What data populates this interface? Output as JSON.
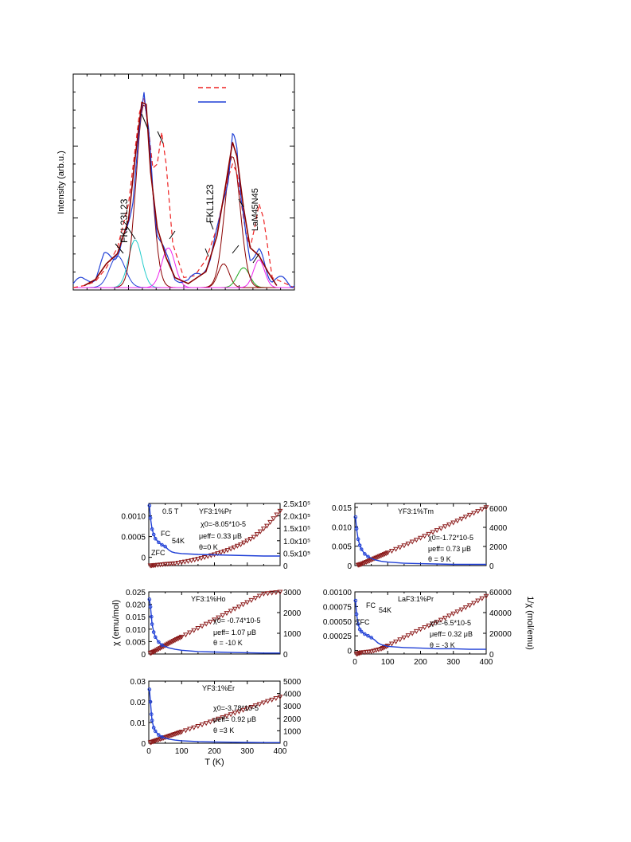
{
  "chart_data": [
    {
      "type": "line",
      "ylabel": "Intensity (arb.u.)",
      "xlabel": "",
      "legend": {
        "placement": "top-right",
        "entries": [
          {
            "style": "dashed",
            "color": "#ee2222"
          },
          {
            "style": "solid",
            "color": "#1f3fd6"
          }
        ]
      },
      "peak_labels": [
        "FKL23L23",
        "FKL1L23",
        "LaM45N45"
      ],
      "series": [
        {
          "style": "dashed",
          "color": "#ee2222",
          "points": [
            [
              0.0,
              0.0
            ],
            [
              0.05,
              0.01
            ],
            [
              0.1,
              0.03
            ],
            [
              0.15,
              0.1
            ],
            [
              0.2,
              0.2
            ],
            [
              0.25,
              0.42
            ],
            [
              0.3,
              0.88
            ],
            [
              0.32,
              0.95
            ],
            [
              0.34,
              0.8
            ],
            [
              0.36,
              0.6
            ],
            [
              0.38,
              0.62
            ],
            [
              0.4,
              0.78
            ],
            [
              0.42,
              0.62
            ],
            [
              0.45,
              0.22
            ],
            [
              0.5,
              0.05
            ],
            [
              0.55,
              0.06
            ],
            [
              0.6,
              0.14
            ],
            [
              0.65,
              0.3
            ],
            [
              0.7,
              0.55
            ],
            [
              0.72,
              0.62
            ],
            [
              0.74,
              0.58
            ],
            [
              0.76,
              0.42
            ],
            [
              0.78,
              0.28
            ],
            [
              0.8,
              0.2
            ],
            [
              0.82,
              0.3
            ],
            [
              0.84,
              0.42
            ],
            [
              0.86,
              0.35
            ],
            [
              0.88,
              0.2
            ],
            [
              0.9,
              0.05
            ],
            [
              1.0,
              0.0
            ]
          ]
        },
        {
          "style": "solid",
          "color": "#1f3fd6",
          "points": [
            [
              0.0,
              0.02
            ],
            [
              0.05,
              0.03
            ],
            [
              0.1,
              0.06
            ],
            [
              0.14,
              0.15
            ],
            [
              0.18,
              0.16
            ],
            [
              0.21,
              0.18
            ],
            [
              0.24,
              0.28
            ],
            [
              0.27,
              0.45
            ],
            [
              0.3,
              0.78
            ],
            [
              0.32,
              1.0
            ],
            [
              0.34,
              0.8
            ],
            [
              0.36,
              0.48
            ],
            [
              0.38,
              0.28
            ],
            [
              0.42,
              0.15
            ],
            [
              0.46,
              0.06
            ],
            [
              0.52,
              0.03
            ],
            [
              0.58,
              0.06
            ],
            [
              0.62,
              0.16
            ],
            [
              0.66,
              0.32
            ],
            [
              0.7,
              0.55
            ],
            [
              0.72,
              0.76
            ],
            [
              0.74,
              0.7
            ],
            [
              0.76,
              0.45
            ],
            [
              0.78,
              0.25
            ],
            [
              0.8,
              0.16
            ],
            [
              0.84,
              0.18
            ],
            [
              0.87,
              0.1
            ],
            [
              0.9,
              0.04
            ],
            [
              0.95,
              0.03
            ],
            [
              1.0,
              0.01
            ]
          ]
        },
        {
          "style": "solid",
          "color": "#8b0000",
          "points": [
            [
              0.05,
              0.01
            ],
            [
              0.1,
              0.04
            ],
            [
              0.15,
              0.12
            ],
            [
              0.2,
              0.17
            ],
            [
              0.25,
              0.34
            ],
            [
              0.28,
              0.65
            ],
            [
              0.31,
              0.93
            ],
            [
              0.33,
              0.92
            ],
            [
              0.35,
              0.58
            ],
            [
              0.38,
              0.3
            ],
            [
              0.42,
              0.15
            ],
            [
              0.46,
              0.05
            ],
            [
              0.52,
              0.02
            ],
            [
              0.6,
              0.08
            ],
            [
              0.65,
              0.26
            ],
            [
              0.69,
              0.52
            ],
            [
              0.72,
              0.73
            ],
            [
              0.74,
              0.66
            ],
            [
              0.77,
              0.4
            ],
            [
              0.8,
              0.2
            ],
            [
              0.84,
              0.16
            ],
            [
              0.88,
              0.08
            ],
            [
              0.92,
              0.01
            ]
          ]
        }
      ],
      "components": [
        {
          "color": "#1f3fd6",
          "center": 0.2,
          "height": 0.16,
          "width": 0.035
        },
        {
          "color": "#22cccc",
          "center": 0.28,
          "height": 0.24,
          "width": 0.03
        },
        {
          "color": "#8b0000",
          "center": 0.32,
          "height": 0.92,
          "width": 0.035
        },
        {
          "color": "#ee22ee",
          "center": 0.43,
          "height": 0.2,
          "width": 0.03
        },
        {
          "color": "#8b0000",
          "center": 0.68,
          "height": 0.12,
          "width": 0.025
        },
        {
          "color": "#22aa22",
          "center": 0.77,
          "height": 0.1,
          "width": 0.028
        },
        {
          "color": "#8b0000",
          "center": 0.72,
          "height": 0.66,
          "width": 0.035
        },
        {
          "color": "#ee22ee",
          "center": 0.84,
          "height": 0.14,
          "width": 0.025
        }
      ]
    },
    {
      "type": "scatter",
      "panel": "YF3:1%Pr",
      "annotations": [
        "0.5 T",
        "YF3:1%Pr",
        "χ0=-8.05*10-5",
        "μeff= 0.33 μB",
        "θ=0 K",
        "FC",
        "ZFC",
        "54K"
      ],
      "xlim": [
        0,
        400
      ],
      "x_ticks": [],
      "ylim_left": [
        -0.0002,
        0.0013
      ],
      "y_ticks_left": [
        "0.0010",
        "0.0005",
        "0"
      ],
      "ylim_right": [
        0,
        250000
      ],
      "y_ticks_right": [
        "2.5x10⁵",
        "2.0x10⁵",
        "1.5x10⁵",
        "1.0x10⁵",
        "0.5x10⁵",
        "0"
      ],
      "chi": {
        "color": "#1f3fd6",
        "x": [
          2,
          5,
          10,
          15,
          20,
          30,
          40,
          50,
          60,
          70,
          80,
          100,
          150,
          200,
          250,
          300,
          350,
          400
        ],
        "y": [
          0.00125,
          0.00095,
          0.00068,
          0.00055,
          0.00045,
          0.00036,
          0.0003,
          0.00026,
          0.00018,
          0.00013,
          0.00011,
          9e-05,
          7e-05,
          6e-05,
          5e-05,
          4e-05,
          3e-05,
          3e-05
        ]
      },
      "inv_chi": {
        "color": "#8b1a1a",
        "x": [
          5,
          20,
          50,
          80,
          120,
          160,
          200,
          240,
          280,
          320,
          360,
          400
        ],
        "y": [
          0,
          2000,
          6000,
          9000,
          18000,
          30000,
          45000,
          62000,
          85000,
          115000,
          160000,
          220000
        ]
      }
    },
    {
      "type": "scatter",
      "panel": "YF3:1%Tm",
      "annotations": [
        "YF3:1%Tm",
        "χ0=-1.72*10-5",
        "μeff= 0.73 μB",
        "θ = 9 K"
      ],
      "xlim": [
        0,
        400
      ],
      "x_ticks": [],
      "ylim_left": [
        0,
        0.016
      ],
      "y_ticks_left": [
        "0.015",
        "0.010",
        "0.005",
        "0"
      ],
      "ylim_right": [
        0,
        6500
      ],
      "y_ticks_right": [
        "6000",
        "4000",
        "2000",
        "0"
      ],
      "chi": {
        "color": "#1f3fd6",
        "x": [
          2,
          5,
          10,
          15,
          20,
          30,
          40,
          60,
          80,
          100,
          150,
          200,
          250,
          300,
          350,
          400
        ],
        "y": [
          0.0125,
          0.0095,
          0.0068,
          0.0052,
          0.0042,
          0.003,
          0.0023,
          0.0015,
          0.0011,
          0.0009,
          0.0006,
          0.0005,
          0.0004,
          0.0003,
          0.0003,
          0.0003
        ]
      },
      "inv_chi": {
        "color": "#8b1a1a",
        "x": [
          10,
          20,
          40,
          60,
          80,
          100,
          150,
          200,
          250,
          300,
          350,
          400
        ],
        "y": [
          60,
          170,
          450,
          750,
          1050,
          1350,
          2100,
          2900,
          3700,
          4500,
          5300,
          6100
        ]
      }
    },
    {
      "type": "scatter",
      "panel": "YF3:1%Ho",
      "annotations": [
        "YF3:1%Ho",
        "χ0= -0.74*10-5",
        "μeff= 1.07 μB",
        "θ = -10 K"
      ],
      "xlim": [
        0,
        400
      ],
      "x_ticks": [],
      "ylabel_left": "χ (emu/mol)",
      "ylim_left": [
        0,
        0.025
      ],
      "y_ticks_left": [
        "0.025",
        "0.020",
        "0.015",
        "0.010",
        "0.005",
        "0"
      ],
      "ylim_right": [
        0,
        3000
      ],
      "y_ticks_right": [
        "3000",
        "2000",
        "1000",
        "0"
      ],
      "chi": {
        "color": "#1f3fd6",
        "x": [
          2,
          5,
          8,
          10,
          15,
          20,
          30,
          40,
          60,
          80,
          100,
          150,
          200,
          250,
          300,
          350,
          400
        ],
        "y": [
          0.022,
          0.019,
          0.015,
          0.012,
          0.0088,
          0.0068,
          0.0048,
          0.0036,
          0.0025,
          0.0019,
          0.0015,
          0.001,
          0.0008,
          0.0006,
          0.0005,
          0.0004,
          0.0004
        ]
      },
      "inv_chi": {
        "color": "#8b1a1a",
        "x": [
          5,
          20,
          40,
          60,
          80,
          100,
          150,
          200,
          250,
          300,
          350,
          400
        ],
        "y": [
          40,
          150,
          330,
          500,
          670,
          830,
          1250,
          1660,
          2080,
          2500,
          2910,
          3000
        ]
      }
    },
    {
      "type": "scatter",
      "panel": "LaF3:1%Pr",
      "annotations": [
        "LaF3:1%Pr",
        "χ0=-6.5*10-5",
        "μeff= 0.32 μB",
        "θ = -3 K",
        "FC",
        "ZFC",
        "54K"
      ],
      "xlim": [
        0,
        400
      ],
      "x_ticks": [
        "0",
        "100",
        "200",
        "300",
        "400"
      ],
      "ylabel_right": "1/χ (mol/emu)",
      "ylim_left": [
        -6e-05,
        0.001
      ],
      "y_ticks_left": [
        "0.00100",
        "0.00075",
        "0.00050",
        "0.00025",
        "0"
      ],
      "ylim_right": [
        0,
        60000
      ],
      "y_ticks_right": [
        "60000",
        "40000",
        "20000",
        "0"
      ],
      "chi": {
        "color": "#1f3fd6",
        "x": [
          2,
          5,
          10,
          15,
          20,
          30,
          40,
          50,
          60,
          70,
          80,
          100,
          150,
          200,
          250,
          300,
          350,
          400
        ],
        "y": [
          0.00085,
          0.00062,
          0.00045,
          0.00036,
          0.00032,
          0.00028,
          0.00025,
          0.00022,
          0.00018,
          0.00013,
          0.0001,
          7e-05,
          5e-05,
          4e-05,
          3e-05,
          3e-05,
          2e-05,
          2e-05
        ]
      },
      "inv_chi": {
        "color": "#8b1a1a",
        "x": [
          5,
          20,
          50,
          80,
          100,
          150,
          200,
          250,
          300,
          350,
          400
        ],
        "y": [
          0,
          1500,
          2500,
          5000,
          8000,
          16000,
          24000,
          31000,
          39000,
          47000,
          56000
        ]
      }
    },
    {
      "type": "scatter",
      "panel": "YF3:1%Er",
      "annotations": [
        "YF3:1%Er",
        "χ0=-3.78*10-5",
        "μeff= 0.92 μB",
        "θ =3 K"
      ],
      "xlim": [
        0,
        400
      ],
      "x_ticks": [
        "0",
        "100",
        "200",
        "300",
        "400"
      ],
      "xlabel": "T (K)",
      "ylim_left": [
        0,
        0.03
      ],
      "y_ticks_left": [
        "0.03",
        "0.02",
        "0.01",
        "0"
      ],
      "ylim_right": [
        0,
        5000
      ],
      "y_ticks_right": [
        "5000",
        "4000",
        "3000",
        "2000",
        "1000",
        "0"
      ],
      "chi": {
        "color": "#1f3fd6",
        "x": [
          2,
          5,
          8,
          10,
          15,
          20,
          30,
          40,
          60,
          80,
          100,
          150,
          200,
          250,
          300,
          350,
          400
        ],
        "y": [
          0.026,
          0.02,
          0.014,
          0.011,
          0.0075,
          0.0058,
          0.004,
          0.003,
          0.002,
          0.0015,
          0.0012,
          0.0008,
          0.0006,
          0.0005,
          0.0004,
          0.0003,
          0.0003
        ]
      },
      "inv_chi": {
        "color": "#8b1a1a",
        "x": [
          5,
          20,
          40,
          60,
          80,
          100,
          150,
          200,
          250,
          300,
          350,
          400
        ],
        "y": [
          60,
          200,
          380,
          560,
          740,
          920,
          1380,
          1850,
          2320,
          2800,
          3270,
          3740
        ]
      }
    }
  ]
}
